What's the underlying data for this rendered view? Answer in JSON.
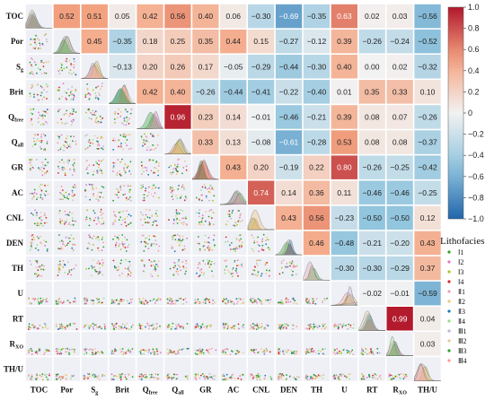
{
  "chart_data": {
    "type": "heatmap",
    "variables": [
      "TOC",
      "Por",
      "Sg",
      "Brit",
      "Qfree",
      "Qall",
      "GR",
      "AC",
      "CNL",
      "DEN",
      "TH",
      "U",
      "RT",
      "Rxo",
      "TH/U"
    ],
    "row_labels": [
      {
        "main": "TOC",
        "sub": ""
      },
      {
        "main": "Por",
        "sub": ""
      },
      {
        "main": "S",
        "sub": "g"
      },
      {
        "main": "Brit",
        "sub": ""
      },
      {
        "main": "Q",
        "sub": "free"
      },
      {
        "main": "Q",
        "sub": "all"
      },
      {
        "main": "GR",
        "sub": ""
      },
      {
        "main": "AC",
        "sub": ""
      },
      {
        "main": "CNL",
        "sub": ""
      },
      {
        "main": "DEN",
        "sub": ""
      },
      {
        "main": "TH",
        "sub": ""
      },
      {
        "main": "U",
        "sub": ""
      },
      {
        "main": "RT",
        "sub": ""
      },
      {
        "main": "R",
        "sub": "XO"
      },
      {
        "main": "TH/U",
        "sub": ""
      }
    ],
    "col_labels": [
      {
        "main": "TOC",
        "sub": ""
      },
      {
        "main": "Por",
        "sub": ""
      },
      {
        "main": "S",
        "sub": "g"
      },
      {
        "main": "Brit",
        "sub": ""
      },
      {
        "main": "Q",
        "sub": "free"
      },
      {
        "main": "Q",
        "sub": "all"
      },
      {
        "main": "GR",
        "sub": ""
      },
      {
        "main": "AC",
        "sub": ""
      },
      {
        "main": "CNL",
        "sub": ""
      },
      {
        "main": "DEN",
        "sub": ""
      },
      {
        "main": "TH",
        "sub": ""
      },
      {
        "main": "U",
        "sub": ""
      },
      {
        "main": "RT",
        "sub": ""
      },
      {
        "main": "R",
        "sub": "XO"
      },
      {
        "main": "TH/U",
        "sub": ""
      }
    ],
    "upper_triangle_correlations": [
      [
        "0.52",
        "0.51",
        "0.05",
        "0.42",
        "0.56",
        "0.40",
        "0.06",
        "−0.30",
        "−0.69",
        "−0.35",
        "0.63",
        "0.02",
        "0.03",
        "−0.56"
      ],
      [
        "0.45",
        "−0.35",
        "0.18",
        "0.25",
        "0.35",
        "0.44",
        "0.15",
        "−0.27",
        "−0.12",
        "0.39",
        "−0.26",
        "−0.24",
        "−0.52"
      ],
      [
        "−0.13",
        "0.20",
        "0.26",
        "0.17",
        "−0.05",
        "−0.29",
        "−0.44",
        "−0.30",
        "0.40",
        "0.00",
        "0.02",
        "−0.32"
      ],
      [
        "0.42",
        "0.40",
        "−0.26",
        "−0.44",
        "−0.41",
        "−0.22",
        "−0.40",
        "0.01",
        "0.35",
        "0.33",
        "0.10"
      ],
      [
        "0.96",
        "0.23",
        "0.14",
        "−0.01",
        "−0.46",
        "−0.21",
        "0.39",
        "0.08",
        "0.07",
        "−0.26"
      ],
      [
        "0.33",
        "0.13",
        "−0.08",
        "−0.61",
        "−0.28",
        "0.53",
        "0.08",
        "0.08",
        "−0.37"
      ],
      [
        "0.43",
        "0.20",
        "−0.19",
        "0.22",
        "0.80",
        "−0.26",
        "−0.25",
        "−0.42"
      ],
      [
        "0.74",
        "0.14",
        "0.36",
        "0.11",
        "−0.46",
        "−0.46",
        "−0.25"
      ],
      [
        "0.43",
        "0.56",
        "−0.23",
        "−0.50",
        "−0.50",
        "0.12"
      ],
      [
        "0.46",
        "−0.48",
        "−0.21",
        "−0.20",
        "0.43"
      ],
      [
        "−0.30",
        "−0.30",
        "−0.29",
        "0.37"
      ],
      [
        "−0.02",
        "−0.01",
        "−0.59"
      ],
      [
        "0.99",
        "0.04"
      ],
      [
        "0.03"
      ]
    ],
    "colorbar": {
      "min": -1.0,
      "max": 1.0,
      "ticks": [
        "1.0",
        "0.8",
        "0.6",
        "0.4",
        "0.2",
        "0",
        "−0.2",
        "−0.4",
        "−0.6",
        "−0.8",
        "−1.0"
      ],
      "colors": {
        "pos_max": "#b2182b",
        "pos_mid": "#f4a582",
        "zero": "#f2f2f2",
        "neg_mid": "#92c5de",
        "neg_max": "#2166ac"
      }
    },
    "legend": {
      "title": "Lithofacies",
      "placement": "right",
      "items": [
        {
          "label": "Ⅰ1",
          "color": "#2ca02c"
        },
        {
          "label": "Ⅰ2",
          "color": "#e377c2"
        },
        {
          "label": "Ⅰ3",
          "color": "#bcbd22"
        },
        {
          "label": "Ⅰ4",
          "color": "#d62728"
        },
        {
          "label": "Ⅱ1",
          "color": "#e8a0b0"
        },
        {
          "label": "Ⅱ2",
          "color": "#f0c674"
        },
        {
          "label": "Ⅱ3",
          "color": "#1f77b4"
        },
        {
          "label": "Ⅱ4",
          "color": "#98df8a"
        },
        {
          "label": "Ⅲ1",
          "color": "#c5b0d5"
        },
        {
          "label": "Ⅲ2",
          "color": "#e7cb94"
        },
        {
          "label": "Ⅲ3",
          "color": "#2ca02c"
        },
        {
          "label": "Ⅲ4",
          "color": "#ff9896"
        }
      ]
    },
    "lower_triangle": "pairwise scatter plots coloured by lithofacies",
    "diagonal": "overlaid density distributions by lithofacies"
  }
}
